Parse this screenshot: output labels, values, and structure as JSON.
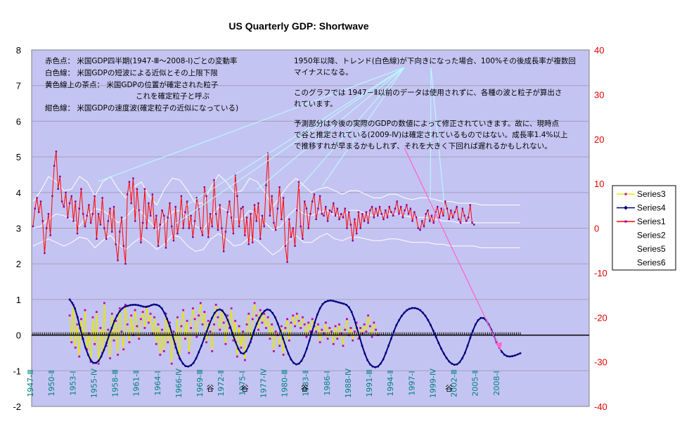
{
  "chart_data": {
    "type": "line",
    "title": "US Quarterly GDP:  Shortwave",
    "left_axis": {
      "min": -2,
      "max": 8,
      "ticks": [
        -2,
        -1,
        0,
        1,
        2,
        3,
        4,
        5,
        6,
        7,
        8
      ]
    },
    "right_axis": {
      "min": -40,
      "max": 40,
      "ticks": [
        -40,
        -30,
        -20,
        -10,
        0,
        10,
        20,
        30,
        40
      ],
      "color": "#e00000"
    },
    "x_categories": [
      "1947-Ⅲ",
      "1950-Ⅱ",
      "1953-Ⅰ",
      "1955-Ⅳ",
      "1958-Ⅲ",
      "1961-Ⅱ",
      "1964-Ⅰ",
      "1966-Ⅳ",
      "1969-Ⅲ",
      "1972-Ⅱ",
      "1975-Ⅰ",
      "1977-Ⅳ",
      "1980-Ⅲ",
      "1983-Ⅱ",
      "1986-Ⅰ",
      "1988-Ⅳ",
      "1991-Ⅲ",
      "1994-Ⅱ",
      "1997-Ⅰ",
      "1999-Ⅳ",
      "2002-Ⅲ",
      "2005-Ⅱ",
      "2008-Ⅰ"
    ],
    "x_range": [
      "1947-Ⅲ",
      "2010-Ⅳ"
    ],
    "grid": {
      "horizontal": true,
      "vertical": false
    },
    "plot_background": "#c4c4f2",
    "legend": {
      "position": "right",
      "entries": [
        {
          "name": "Series3",
          "color": "#e8e800",
          "marker": "square"
        },
        {
          "name": "Series4",
          "color": "#000080",
          "marker": "diamond"
        },
        {
          "name": "Series1",
          "color": "#ff0000",
          "marker": "square"
        },
        {
          "name": "Series2",
          "color": "#ffffff",
          "marker": "none"
        },
        {
          "name": "Series5",
          "color": "#ffffff",
          "marker": "none"
        },
        {
          "name": "Series6",
          "color": "#ffffff",
          "marker": "none"
        }
      ]
    },
    "series": [
      {
        "name": "Series1",
        "axis": "left",
        "color": "#ff0000",
        "marker_color": "#8000a0",
        "start": "1947-Ⅲ",
        "values": [
          3.05,
          3.55,
          3.85,
          3.45,
          3.75,
          3.2,
          2.3,
          3.0,
          3.4,
          2.8,
          3.9,
          4.75,
          5.15,
          4.1,
          4.45,
          3.75,
          3.6,
          4.0,
          3.3,
          3.7,
          3.9,
          3.2,
          3.75,
          2.85,
          3.55,
          4.1,
          3.4,
          3.05,
          3.35,
          3.65,
          3.15,
          3.4,
          3.9,
          2.7,
          3.4,
          3.1,
          3.85,
          3.0,
          2.7,
          3.2,
          3.55,
          2.9,
          3.6,
          2.55,
          2.1,
          2.9,
          3.3,
          2.5,
          2.0,
          3.95,
          4.3,
          3.7,
          4.4,
          3.2,
          4.1,
          3.5,
          2.6,
          3.15,
          4.1,
          3.0,
          3.7,
          3.35,
          3.95,
          3.0,
          3.35,
          2.5,
          3.1,
          3.5,
          3.35,
          2.45,
          3.3,
          3.7,
          3.05,
          2.65,
          3.6,
          2.85,
          3.2,
          3.9,
          3.0,
          3.45,
          3.75,
          3.0,
          3.35,
          2.75,
          3.2,
          3.85,
          3.55,
          3.0,
          2.8,
          4.15,
          3.9,
          2.75,
          3.4,
          3.05,
          4.35,
          3.4,
          2.95,
          3.65,
          3.0,
          2.35,
          2.9,
          3.45,
          3.75,
          3.3,
          2.85,
          4.5,
          3.9,
          3.05,
          3.55,
          3.6,
          2.8,
          3.3,
          2.55,
          3.4,
          2.6,
          3.65,
          3.2,
          3.7,
          2.7,
          3.35,
          3.05,
          4.2,
          5.1,
          3.35,
          3.9,
          3.15,
          2.95,
          3.55,
          4.15,
          3.25,
          3.85,
          2.5,
          2.05,
          3.25,
          2.75,
          3.0,
          2.5,
          3.5,
          4.3,
          3.05,
          2.7,
          3.75,
          3.55,
          3.0,
          3.4,
          3.75,
          3.95,
          3.25,
          3.55,
          3.9,
          3.4,
          3.35,
          3.6,
          3.2,
          3.5,
          3.45,
          3.7,
          3.35,
          3.55,
          3.25,
          3.4,
          3.3,
          3.55,
          3.0,
          3.45,
          3.1,
          2.65,
          3.25,
          2.85,
          3.45,
          3.0,
          3.4,
          3.2,
          3.45,
          3.15,
          3.5,
          3.6,
          3.3,
          3.55,
          3.35,
          3.6,
          3.4,
          3.25,
          3.5,
          3.3,
          3.6,
          3.45,
          3.35,
          3.55,
          3.75,
          3.4,
          3.6,
          3.3,
          3.5,
          3.65,
          3.4,
          3.55,
          3.2,
          3.45,
          3.3,
          3.0,
          2.95,
          3.2,
          3.05,
          3.4,
          3.5,
          3.2,
          3.35,
          3.15,
          3.45,
          3.6,
          3.3,
          3.55,
          3.35,
          3.75,
          3.55,
          3.25,
          3.5,
          3.3,
          3.45,
          3.6,
          3.25,
          3.15,
          3.55,
          3.35,
          3.2,
          3.3,
          3.65,
          3.15,
          3.1
        ]
      },
      {
        "name": "Series3",
        "axis": "left",
        "color": "#e8e800",
        "marker_color": "#c000c0",
        "start": "1952-Ⅱ",
        "values": [
          0.55,
          -0.2,
          0.85,
          -0.35,
          0.3,
          -0.6,
          0.45,
          -0.1,
          0.7,
          -0.4,
          0.05,
          -0.75,
          0.5,
          -0.25,
          0.65,
          -0.8,
          0.2,
          -0.5,
          0.9,
          -0.3,
          0.15,
          -0.65,
          0.6,
          -0.15,
          0.4,
          -0.55,
          0.75,
          0.1,
          -0.4,
          0.85,
          0.3,
          -0.2,
          0.55,
          0.0,
          0.7,
          0.25,
          -0.1,
          0.45,
          0.65,
          0.2,
          0.8,
          0.35,
          0.6,
          0.05,
          0.5,
          -0.25,
          0.3,
          -0.55,
          0.15,
          -0.45,
          0.6,
          -0.2,
          0.35,
          -0.8,
          0.1,
          -0.35,
          0.5,
          -0.65,
          0.25,
          0.7,
          -0.1,
          0.4,
          -0.5,
          0.2,
          0.75,
          0.45,
          -0.05,
          0.55,
          0.9,
          0.3,
          0.65,
          -0.2,
          0.4,
          0.1,
          -0.45,
          0.3,
          0.85,
          0.5,
          0.15,
          0.7,
          0.35,
          -0.25,
          0.55,
          0.2,
          0.75,
          -0.15,
          0.4,
          -0.6,
          0.25,
          -0.35,
          0.1,
          -0.7,
          0.3,
          0.6,
          -0.2,
          0.45,
          0.9,
          0.55,
          0.15,
          0.7,
          0.35,
          0.6,
          0.2,
          0.5,
          -0.1,
          0.3,
          -0.45,
          0.1,
          0.0,
          -0.3,
          0.25,
          -0.55,
          0.2,
          0.45,
          -0.15,
          0.35,
          0.55,
          0.25,
          0.6,
          0.4,
          0.2,
          0.5,
          0.3,
          -0.05,
          0.35,
          0.1,
          0.45,
          0.25,
          0.1,
          0.3,
          -0.2,
          0.15,
          0.05,
          0.35,
          -0.1,
          0.2,
          0.1,
          -0.25,
          0.25,
          -0.1,
          0.3,
          0.05,
          -0.3,
          0.15,
          0.45,
          0.0,
          0.2,
          -0.15,
          0.1,
          0.35,
          -0.1,
          0.2,
          0.05,
          0.3,
          0.1,
          0.55,
          0.25,
          -0.05,
          0.35,
          0.15,
          0.0
        ]
      },
      {
        "name": "Series4",
        "axis": "left",
        "color": "#000080",
        "marker_color": "#000080",
        "start": "1952-Ⅱ",
        "end": "2010-Ⅳ",
        "values": [
          1.0,
          0.9,
          0.75,
          0.5,
          0.2,
          -0.1,
          -0.35,
          -0.55,
          -0.7,
          -0.78,
          -0.78,
          -0.72,
          -0.6,
          -0.42,
          -0.22,
          0.0,
          0.2,
          0.4,
          0.55,
          0.67,
          0.75,
          0.8,
          0.82,
          0.84,
          0.85,
          0.85,
          0.84,
          0.82,
          0.8,
          0.79,
          0.81,
          0.84,
          0.86,
          0.85,
          0.82,
          0.75,
          0.62,
          0.45,
          0.25,
          0.0,
          -0.25,
          -0.5,
          -0.68,
          -0.8,
          -0.87,
          -0.88,
          -0.85,
          -0.78,
          -0.65,
          -0.48,
          -0.3,
          -0.1,
          0.1,
          0.3,
          0.48,
          0.62,
          0.7,
          0.72,
          0.68,
          0.58,
          0.42,
          0.22,
          0.0,
          -0.2,
          -0.38,
          -0.5,
          -0.52,
          -0.45,
          -0.3,
          -0.1,
          0.12,
          0.32,
          0.48,
          0.6,
          0.68,
          0.72,
          0.7,
          0.62,
          0.5,
          0.32,
          0.12,
          -0.1,
          -0.32,
          -0.52,
          -0.68,
          -0.78,
          -0.82,
          -0.8,
          -0.72,
          -0.58,
          -0.38,
          -0.15,
          0.1,
          0.35,
          0.58,
          0.75,
          0.87,
          0.93,
          0.96,
          0.97,
          0.96,
          0.94,
          0.92,
          0.9,
          0.88,
          0.85,
          0.78,
          0.65,
          0.45,
          0.2,
          -0.05,
          -0.3,
          -0.52,
          -0.7,
          -0.82,
          -0.88,
          -0.9,
          -0.88,
          -0.8,
          -0.68,
          -0.5,
          -0.3,
          -0.1,
          0.1,
          0.28,
          0.42,
          0.54,
          0.63,
          0.7,
          0.74,
          0.76,
          0.76,
          0.74,
          0.7,
          0.63,
          0.54,
          0.42,
          0.28,
          0.12,
          -0.05,
          -0.22,
          -0.38,
          -0.52,
          -0.64,
          -0.74,
          -0.8,
          -0.83,
          -0.82,
          -0.76,
          -0.65,
          -0.5,
          -0.3,
          -0.08,
          0.12,
          0.3,
          0.42,
          0.48,
          0.48,
          0.42,
          0.3,
          0.15,
          -0.02,
          -0.2,
          -0.35,
          -0.47,
          -0.55,
          -0.59,
          -0.6,
          -0.59,
          -0.57,
          -0.54,
          -0.51
        ]
      },
      {
        "name": "Series2",
        "axis": "left",
        "color": "#ffffff",
        "start": "1947-Ⅲ",
        "end": "2010-Ⅳ",
        "values": [
          3.0,
          3.05,
          3.25,
          3.4,
          3.35,
          3.25,
          3.05,
          3.35,
          3.55,
          3.5,
          3.35,
          3.15,
          3.3,
          3.55,
          3.45,
          3.2,
          2.95,
          3.15,
          3.45,
          3.5,
          3.3,
          3.05,
          2.95,
          3.3,
          3.6,
          3.5,
          3.25,
          3.25,
          3.5,
          3.4,
          3.15,
          2.95,
          3.05,
          3.35,
          3.55,
          3.4,
          3.35,
          3.45,
          3.5,
          3.35,
          3.35,
          3.5,
          3.5,
          3.4,
          3.35,
          3.35,
          3.4,
          3.4,
          3.35,
          3.3,
          3.3,
          3.3,
          3.25,
          3.2,
          3.2,
          3.15,
          3.15,
          3.15,
          3.15,
          3.15,
          3.15,
          3.15,
          3.15,
          3.15
        ]
      },
      {
        "name": "Series5",
        "axis": "left",
        "color": "#ffffff",
        "start": "1947-Ⅲ",
        "end": "2010-Ⅳ",
        "values": [
          3.75,
          4.05,
          4.45,
          4.3,
          4.05,
          4.1,
          4.45,
          4.3,
          3.9,
          4.3,
          4.45,
          4.1,
          3.85,
          4.15,
          4.3,
          3.9,
          3.65,
          4.1,
          4.4,
          4.35,
          4.05,
          3.7,
          3.7,
          4.15,
          4.5,
          4.3,
          4.0,
          4.05,
          4.4,
          4.3,
          4.0,
          3.6,
          3.9,
          4.2,
          4.4,
          4.2,
          4.0,
          4.1,
          4.15,
          4.05,
          3.95,
          4.05,
          4.05,
          3.95,
          3.85,
          3.85,
          3.95,
          3.95,
          3.85,
          3.8,
          3.85,
          3.85,
          3.8,
          3.75,
          3.75,
          3.7,
          3.7,
          3.7,
          3.65,
          3.65,
          3.65,
          3.65,
          3.65,
          3.65
        ]
      },
      {
        "name": "Series6",
        "axis": "left",
        "color": "#ffffff",
        "start": "1947-Ⅲ",
        "end": "2010-Ⅳ",
        "values": [
          2.5,
          2.6,
          2.7,
          2.6,
          2.5,
          2.6,
          2.75,
          2.7,
          2.45,
          2.65,
          2.8,
          2.55,
          2.4,
          2.6,
          2.75,
          2.6,
          2.4,
          2.55,
          2.8,
          2.75,
          2.5,
          2.35,
          2.4,
          2.7,
          2.85,
          2.7,
          2.5,
          2.55,
          2.75,
          2.65,
          2.45,
          2.25,
          2.4,
          2.65,
          2.8,
          2.6,
          2.6,
          2.75,
          2.85,
          2.7,
          2.65,
          2.75,
          2.75,
          2.7,
          2.65,
          2.65,
          2.7,
          2.7,
          2.65,
          2.6,
          2.6,
          2.6,
          2.55,
          2.55,
          2.5,
          2.5,
          2.5,
          2.5,
          2.45,
          2.45,
          2.45,
          2.45,
          2.45,
          2.45
        ]
      }
    ],
    "valley_labels": [
      {
        "text": "谷",
        "x": "1970-Ⅲ"
      },
      {
        "text": "谷",
        "x": "1975-Ⅰ"
      },
      {
        "text": "谷",
        "x": "1982-Ⅳ"
      },
      {
        "text": "谷",
        "x": "2001-Ⅲ"
      }
    ]
  },
  "notes_left": [
    "赤色点：  米国GDP四半期(1947-Ⅲ～2008-Ⅰ)ごとの変動率",
    "白色線：  米国GDPの短波による近似とその上限下限",
    "黄色線上の茶点：  米国GDPの位置が確定された粒子",
    "これを確定粒子と呼ぶ",
    "紺色線：  米国GDPの速度波(確定粒子の近似になっている)"
  ],
  "notes_right": [
    "1950年以降、トレンド(白色線)が下向きになった場合、100%その後成長率が複数回",
    "マイナスになる。",
    "このグラフでは 1947－Ⅱ以前のデータは使用されずに、各種の波と粒子が算出さ",
    "れています。",
    "予測部分は今後の実際のGDPの数値によって修正されていきます。故に、現時点",
    "で谷と推定されている(2009-Ⅳ)は確定されているものではない。成長率1.4%以上",
    "で推移すれが早まるかもしれず、それを大きく下回れば遅れるかもしれない。"
  ]
}
